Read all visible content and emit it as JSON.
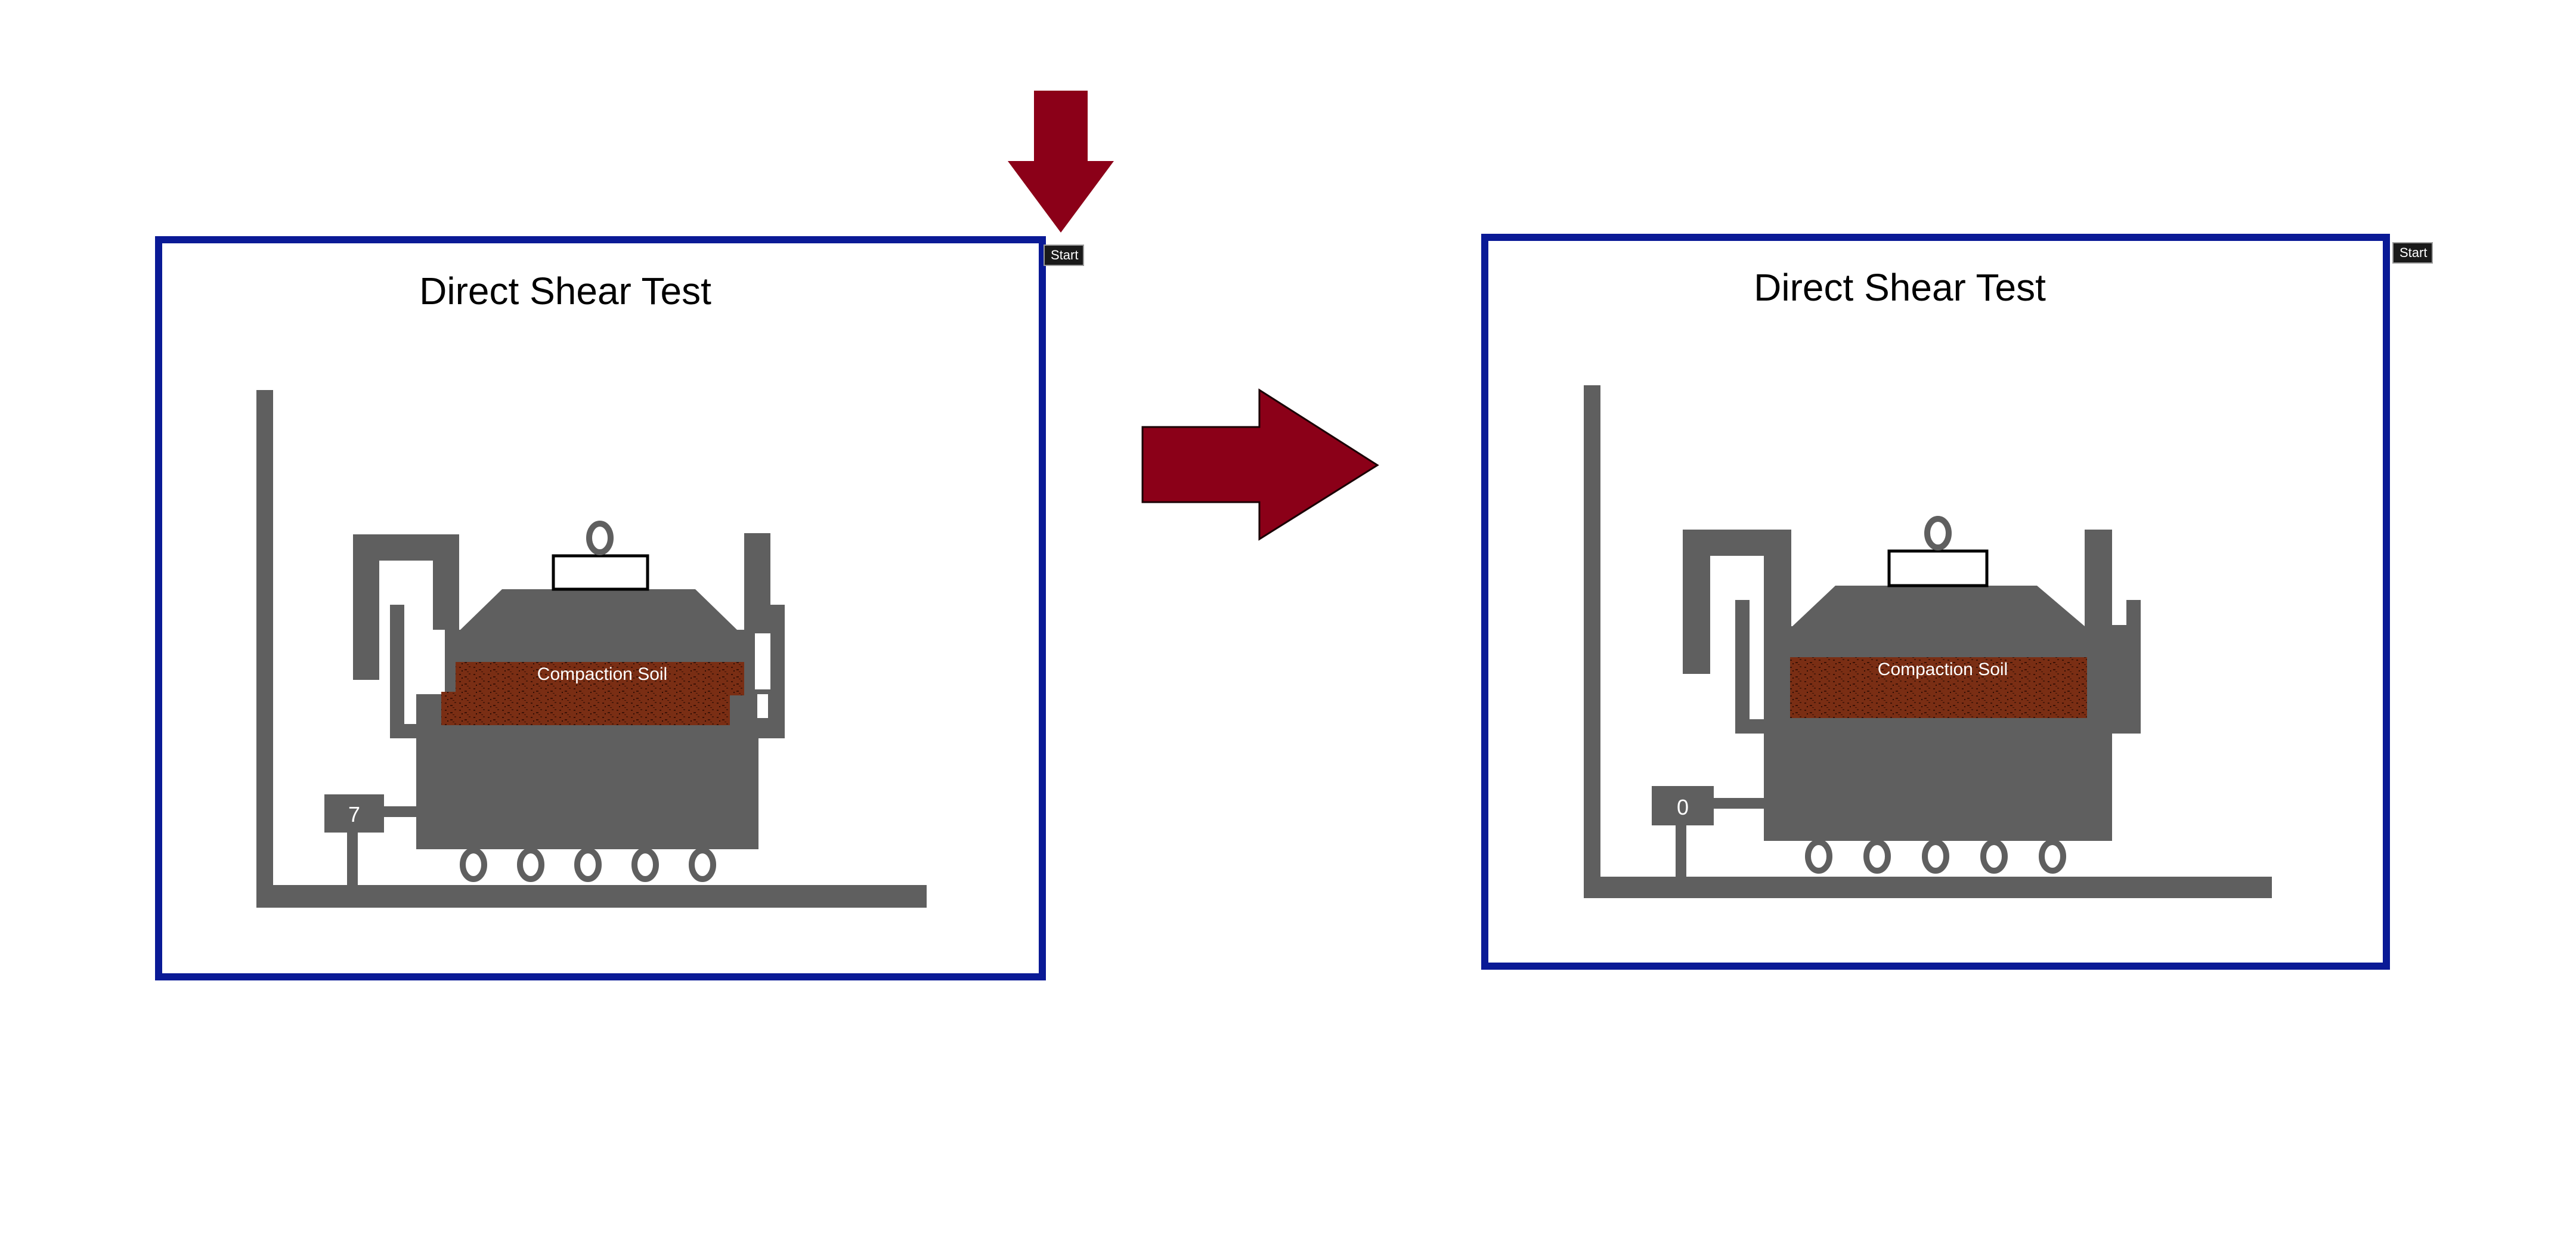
{
  "panels": [
    {
      "title": "Direct Shear Test",
      "soil_label": "Compaction Soil",
      "gauge_value": "7",
      "start_label": "Start"
    },
    {
      "title": "Direct Shear Test",
      "soil_label": "Compaction Soil",
      "gauge_value": "0",
      "start_label": "Start"
    }
  ],
  "colors": {
    "frame_border": "#0a1a96",
    "machine_gray": "#5f5f5f",
    "soil_brown": "#7a2e14",
    "arrow_red": "#8b0018"
  },
  "icons": {
    "down_arrow": "down-arrow-icon",
    "right_arrow": "right-arrow-icon"
  }
}
